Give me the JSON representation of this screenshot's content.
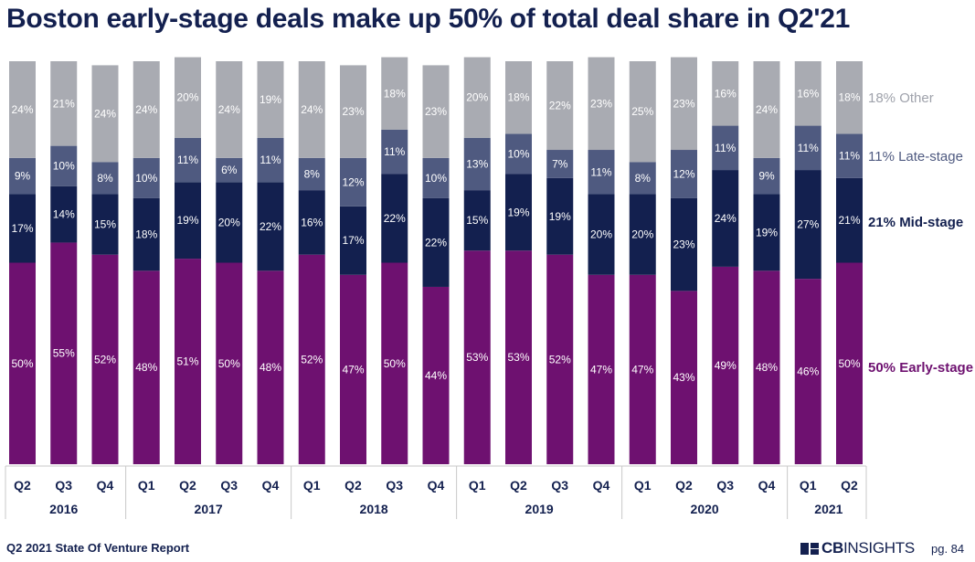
{
  "title": "Boston early-stage deals make up 50% of total deal share in Q2'21",
  "footer": {
    "report": "Q2 2021 State Of Venture Report",
    "page": "pg. 84"
  },
  "logo": {
    "bold": "CB",
    "regular": "INSIGHTS"
  },
  "colors": {
    "Early-stage": "#6e1170",
    "Mid-stage": "#13204f",
    "Late-stage": "#4f5a80",
    "Other": "#a9abb2"
  },
  "chart_data": {
    "type": "bar",
    "stacked": true,
    "title": "Boston early-stage deals make up 50% of total deal share in Q2'21",
    "ylim": [
      0,
      100
    ],
    "categories": [
      "Q2",
      "Q3",
      "Q4",
      "Q1",
      "Q2",
      "Q3",
      "Q4",
      "Q1",
      "Q2",
      "Q3",
      "Q4",
      "Q1",
      "Q2",
      "Q3",
      "Q4",
      "Q1",
      "Q2",
      "Q3",
      "Q4",
      "Q1",
      "Q2"
    ],
    "years": [
      {
        "label": "2016",
        "count": 3
      },
      {
        "label": "2017",
        "count": 4
      },
      {
        "label": "2018",
        "count": 4
      },
      {
        "label": "2019",
        "count": 4
      },
      {
        "label": "2020",
        "count": 4
      },
      {
        "label": "2021",
        "count": 2
      }
    ],
    "series": [
      {
        "name": "Early-stage",
        "values": [
          50,
          55,
          52,
          48,
          51,
          50,
          48,
          52,
          47,
          50,
          44,
          53,
          53,
          52,
          47,
          47,
          43,
          49,
          48,
          46,
          50
        ]
      },
      {
        "name": "Mid-stage",
        "values": [
          17,
          14,
          15,
          18,
          19,
          20,
          22,
          16,
          17,
          22,
          22,
          15,
          19,
          19,
          20,
          20,
          23,
          24,
          19,
          27,
          21
        ]
      },
      {
        "name": "Late-stage",
        "values": [
          9,
          10,
          8,
          10,
          11,
          6,
          11,
          8,
          12,
          11,
          10,
          13,
          10,
          7,
          11,
          8,
          12,
          11,
          9,
          11,
          11
        ]
      },
      {
        "name": "Other",
        "values": [
          24,
          21,
          24,
          24,
          20,
          24,
          19,
          24,
          23,
          18,
          23,
          20,
          18,
          22,
          23,
          25,
          23,
          16,
          24,
          16,
          18
        ]
      }
    ],
    "legend": [
      {
        "label": "18% Other",
        "series": "Other"
      },
      {
        "label": "11% Late-stage",
        "series": "Late-stage"
      },
      {
        "label": "21% Mid-stage",
        "series": "Mid-stage"
      },
      {
        "label": "50% Early-stage",
        "series": "Early-stage"
      }
    ],
    "legend_position": "right"
  }
}
